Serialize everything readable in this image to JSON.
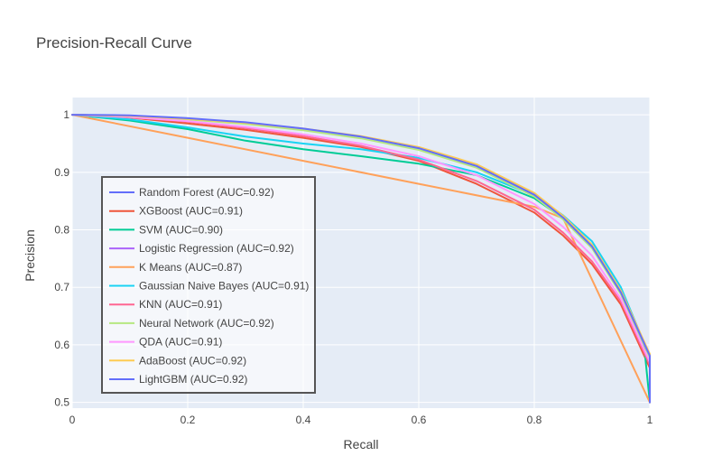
{
  "chart_data": {
    "type": "line",
    "title": "Precision-Recall Curve",
    "xlabel": "Recall",
    "ylabel": "Precision",
    "xlim": [
      0,
      1
    ],
    "ylim": [
      0.49,
      1.03
    ],
    "grid": true,
    "legend_placement": "left-center",
    "xticks": [
      0,
      0.2,
      0.4,
      0.6,
      0.8,
      1
    ],
    "xtick_labels": [
      "0",
      "0.2",
      "0.4",
      "0.6",
      "0.8",
      "1"
    ],
    "yticks": [
      0.5,
      0.6,
      0.7,
      0.8,
      0.9,
      1
    ],
    "ytick_labels": [
      "0.5",
      "0.6",
      "0.7",
      "0.8",
      "0.9",
      "1"
    ],
    "colors": {
      "plot_bg": "#e5ecf6",
      "grid": "#ffffff",
      "text": "#444444",
      "legend_bg": "rgba(255,255,255,0.6)",
      "legend_border": "#555555"
    },
    "series": [
      {
        "name": "Random Forest (AUC=0.92)",
        "color": "#636efa",
        "x": [
          0,
          0.1,
          0.2,
          0.3,
          0.4,
          0.5,
          0.6,
          0.7,
          0.8,
          0.85,
          0.9,
          0.95,
          1.0,
          1.0
        ],
        "y": [
          1.0,
          0.998,
          0.993,
          0.985,
          0.974,
          0.96,
          0.94,
          0.91,
          0.86,
          0.82,
          0.77,
          0.69,
          0.58,
          0.5
        ]
      },
      {
        "name": "XGBoost (AUC=0.91)",
        "color": "#ef553b",
        "x": [
          0,
          0.1,
          0.2,
          0.3,
          0.4,
          0.5,
          0.6,
          0.7,
          0.8,
          0.85,
          0.9,
          0.95,
          1.0,
          1.0
        ],
        "y": [
          1.0,
          0.995,
          0.985,
          0.974,
          0.96,
          0.944,
          0.92,
          0.88,
          0.83,
          0.79,
          0.74,
          0.67,
          0.56,
          0.5
        ]
      },
      {
        "name": "SVM (AUC=0.90)",
        "color": "#00cc96",
        "x": [
          0,
          0.1,
          0.2,
          0.3,
          0.4,
          0.5,
          0.6,
          0.7,
          0.8,
          0.85,
          0.9,
          0.95,
          0.99,
          1.0
        ],
        "y": [
          1.0,
          0.99,
          0.975,
          0.955,
          0.94,
          0.928,
          0.915,
          0.895,
          0.855,
          0.82,
          0.77,
          0.69,
          0.6,
          0.5
        ]
      },
      {
        "name": "Logistic Regression (AUC=0.92)",
        "color": "#ab63fa",
        "x": [
          0,
          0.1,
          0.2,
          0.3,
          0.4,
          0.5,
          0.6,
          0.7,
          0.8,
          0.85,
          0.9,
          0.95,
          1.0,
          1.0
        ],
        "y": [
          1.0,
          0.998,
          0.993,
          0.986,
          0.975,
          0.962,
          0.943,
          0.912,
          0.862,
          0.822,
          0.772,
          0.692,
          0.582,
          0.5
        ]
      },
      {
        "name": "K Means (AUC=0.87)",
        "color": "#ffa15a",
        "x": [
          0,
          0.2,
          0.4,
          0.6,
          0.8,
          0.85,
          1.0
        ],
        "y": [
          1.0,
          0.96,
          0.92,
          0.88,
          0.84,
          0.82,
          0.5
        ]
      },
      {
        "name": "Gaussian Naive Bayes (AUC=0.91)",
        "color": "#19d3f3",
        "x": [
          0,
          0.1,
          0.2,
          0.3,
          0.4,
          0.5,
          0.6,
          0.7,
          0.8,
          0.85,
          0.9,
          0.95,
          1.0,
          1.0
        ],
        "y": [
          1.0,
          0.992,
          0.978,
          0.962,
          0.95,
          0.94,
          0.925,
          0.9,
          0.86,
          0.825,
          0.78,
          0.7,
          0.58,
          0.5
        ]
      },
      {
        "name": "KNN (AUC=0.91)",
        "color": "#ff6692",
        "x": [
          0,
          0.1,
          0.2,
          0.3,
          0.4,
          0.5,
          0.6,
          0.7,
          0.8,
          0.85,
          0.9,
          0.95,
          1.0,
          1.0
        ],
        "y": [
          1.0,
          0.996,
          0.988,
          0.977,
          0.963,
          0.946,
          0.922,
          0.885,
          0.835,
          0.795,
          0.745,
          0.675,
          0.565,
          0.5
        ]
      },
      {
        "name": "Neural Network (AUC=0.92)",
        "color": "#b6e880",
        "x": [
          0,
          0.1,
          0.2,
          0.3,
          0.4,
          0.5,
          0.6,
          0.7,
          0.8,
          0.85,
          0.9,
          0.95,
          1.0,
          1.0
        ],
        "y": [
          1.0,
          0.998,
          0.992,
          0.984,
          0.973,
          0.959,
          0.939,
          0.908,
          0.858,
          0.818,
          0.768,
          0.688,
          0.578,
          0.5
        ]
      },
      {
        "name": "QDA (AUC=0.91)",
        "color": "#ff97ff",
        "x": [
          0,
          0.1,
          0.2,
          0.3,
          0.4,
          0.5,
          0.6,
          0.7,
          0.8,
          0.85,
          0.9,
          0.95,
          1.0,
          1.0
        ],
        "y": [
          1.0,
          0.996,
          0.989,
          0.979,
          0.966,
          0.95,
          0.928,
          0.895,
          0.845,
          0.805,
          0.755,
          0.68,
          0.57,
          0.5
        ]
      },
      {
        "name": "AdaBoost (AUC=0.92)",
        "color": "#fecb52",
        "x": [
          0,
          0.1,
          0.2,
          0.3,
          0.4,
          0.5,
          0.6,
          0.7,
          0.8,
          0.85,
          0.9,
          0.95,
          1.0,
          1.0
        ],
        "y": [
          1.0,
          0.998,
          0.993,
          0.986,
          0.976,
          0.963,
          0.944,
          0.914,
          0.864,
          0.824,
          0.774,
          0.694,
          0.584,
          0.5
        ]
      },
      {
        "name": "LightGBM (AUC=0.92)",
        "color": "#636efa",
        "x": [
          0,
          0.1,
          0.2,
          0.3,
          0.4,
          0.5,
          0.6,
          0.7,
          0.8,
          0.85,
          0.9,
          0.95,
          1.0,
          1.0
        ],
        "y": [
          1.0,
          0.999,
          0.994,
          0.987,
          0.976,
          0.962,
          0.942,
          0.911,
          0.861,
          0.821,
          0.771,
          0.691,
          0.581,
          0.5
        ]
      }
    ]
  }
}
